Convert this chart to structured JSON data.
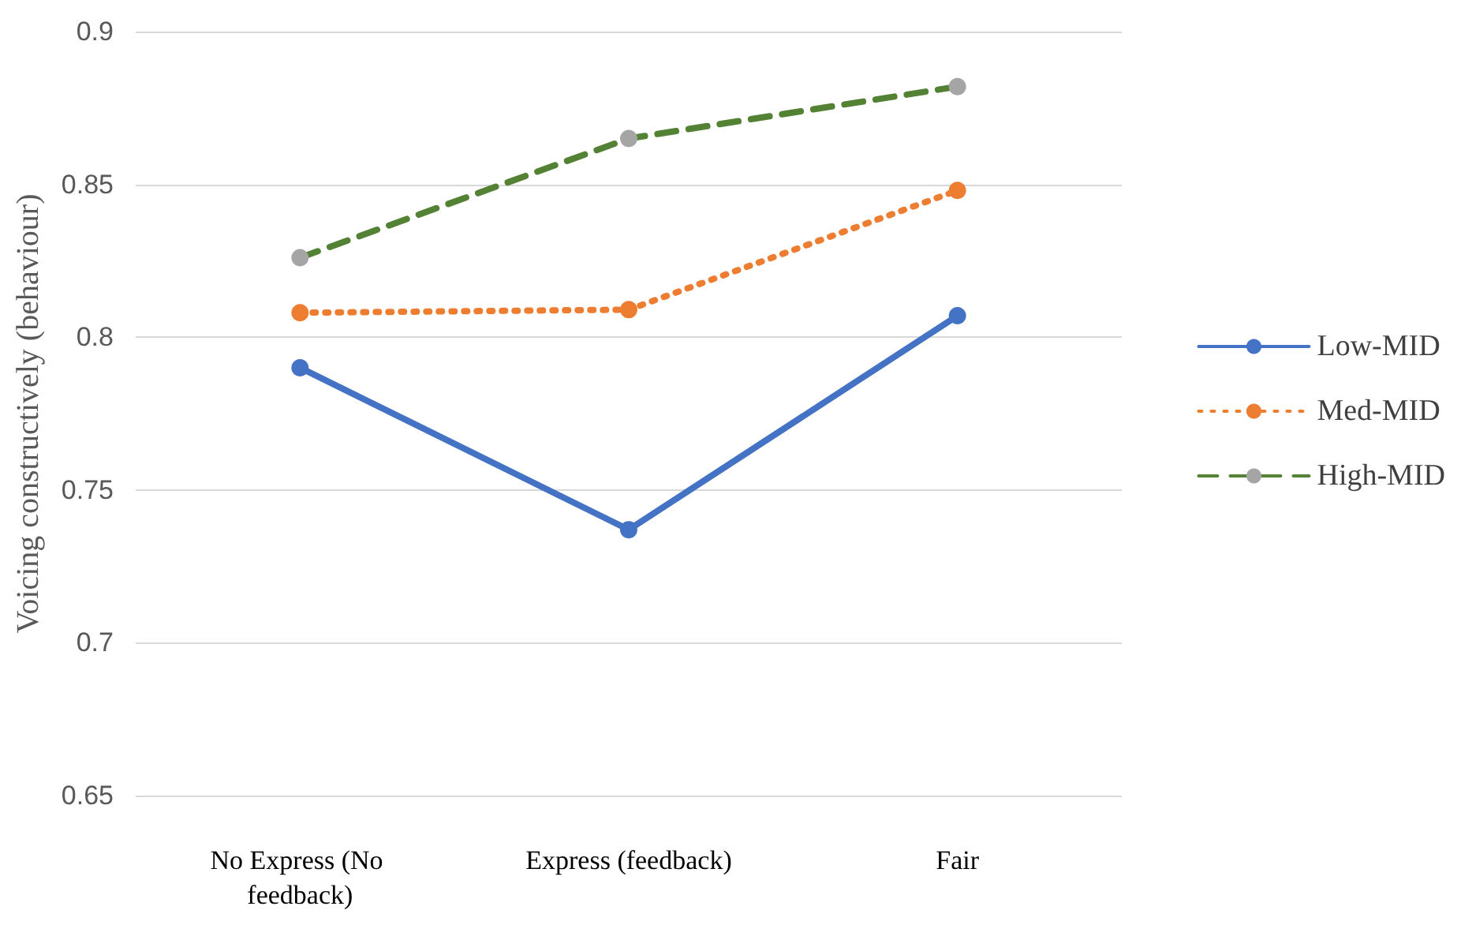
{
  "chart_data": {
    "type": "line",
    "ylabel": "Voicing constructively (behaviour)",
    "categories": [
      "No Express (No feedback)",
      "Express (feedback)",
      "Fair"
    ],
    "series": [
      {
        "name": "Low-MID",
        "color": "#4472c4",
        "line_style": "solid",
        "values": [
          0.79,
          0.737,
          0.807
        ]
      },
      {
        "name": "Med-MID",
        "color": "#ed7d31",
        "line_style": "dotted",
        "values": [
          0.808,
          0.809,
          0.848
        ]
      },
      {
        "name": "High-MID",
        "color": "#548235",
        "colors": [
          "#a5a5a5",
          "#a5a5a5",
          "#a5a5a5"
        ],
        "line_style": "dashed",
        "values": [
          0.826,
          0.865,
          0.882
        ]
      }
    ],
    "ylim": [
      0.65,
      0.9
    ],
    "yticks": [
      0.65,
      0.7,
      0.75,
      0.8,
      0.85,
      0.9
    ],
    "grid": "y",
    "legend": "right",
    "marker": "circle"
  }
}
